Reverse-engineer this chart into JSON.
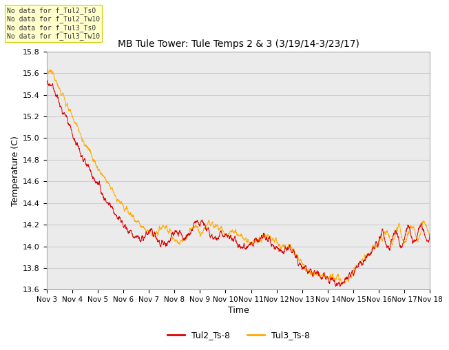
{
  "title": "MB Tule Tower: Tule Temps 2 & 3 (3/19/14-3/23/17)",
  "xlabel": "Time",
  "ylabel": "Temperature (C)",
  "ylim": [
    13.6,
    15.8
  ],
  "yticks": [
    13.6,
    13.8,
    14.0,
    14.2,
    14.4,
    14.6,
    14.8,
    15.0,
    15.2,
    15.4,
    15.6,
    15.8
  ],
  "x_labels": [
    "Nov 3",
    "Nov 4",
    "Nov 5",
    "Nov 6",
    "Nov 7",
    "Nov 8",
    "Nov 9",
    "Nov 10",
    "Nov 11",
    "Nov 12",
    "Nov 13",
    "Nov 14",
    "Nov 15",
    "Nov 16",
    "Nov 17",
    "Nov 18"
  ],
  "legend_entries": [
    "Tul2_Ts-8",
    "Tul3_Ts-8"
  ],
  "line_color_tul2": "#dd0000",
  "line_color_tul3": "#ffaa00",
  "no_data_lines": [
    "No data for f_Tul2_Ts0",
    "No data for f_Tul2_Tw10",
    "No data for f_Tul3_Ts0",
    "No data for f_Tul3_Tw10"
  ],
  "grid_color": "#cccccc",
  "plot_bg_color": "#ebebeb",
  "fig_bg_color": "#ffffff"
}
